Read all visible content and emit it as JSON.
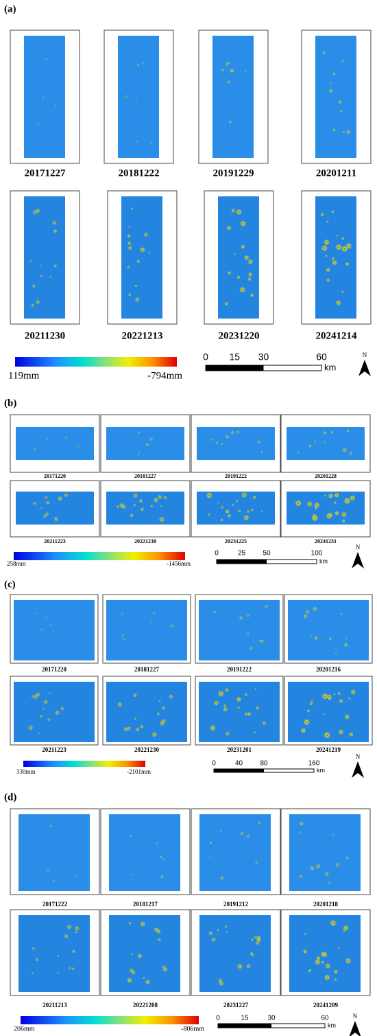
{
  "panels": [
    {
      "label": "(a)",
      "dates": [
        "20171227",
        "20181222",
        "20191229",
        "20201211",
        "20211230",
        "20221213",
        "20231220",
        "20241214"
      ],
      "colorbar": {
        "min_label": "119mm",
        "max_label": "-794mm"
      },
      "scale_bar": {
        "ticks": [
          0,
          15,
          30,
          60
        ],
        "unit": "km"
      },
      "north": "N"
    },
    {
      "label": "(b)",
      "dates": [
        "20171220",
        "20181227",
        "20191222",
        "20201228",
        "20211223",
        "20221230",
        "20231225",
        "20241231"
      ],
      "colorbar": {
        "min_label": "258mm",
        "max_label": "-1456mm"
      },
      "scale_bar": {
        "ticks": [
          0,
          25,
          50,
          100
        ],
        "unit": "km"
      },
      "north": "N"
    },
    {
      "label": "(c)",
      "dates": [
        "20171220",
        "20181227",
        "20191222",
        "20201216",
        "20211223",
        "20221230",
        "20231201",
        "20241219"
      ],
      "colorbar": {
        "min_label": "330mm",
        "max_label": "-2101mm"
      },
      "scale_bar": {
        "ticks": [
          0,
          40,
          80,
          160
        ],
        "unit": "km"
      },
      "north": "N"
    },
    {
      "label": "(d)",
      "dates": [
        "20171222",
        "20181217",
        "20191212",
        "20201218",
        "20211213",
        "20221208",
        "20231227",
        "20241209"
      ],
      "colorbar": {
        "min_label": "206mm",
        "max_label": "-806mm"
      },
      "scale_bar": {
        "ticks": [
          0,
          15,
          30,
          60
        ],
        "unit": "km"
      },
      "north": "N"
    }
  ]
}
